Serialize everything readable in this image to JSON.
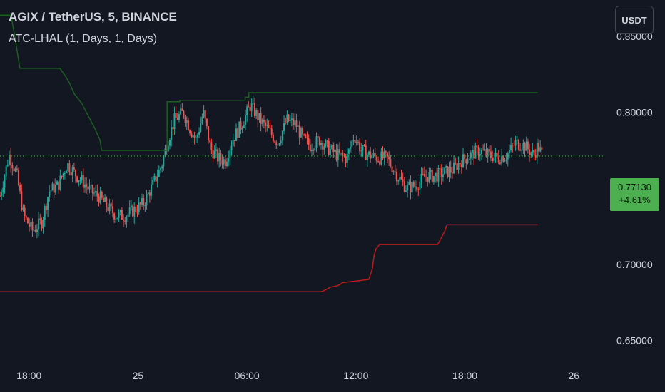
{
  "header": {
    "title": "AGIX / TetherUS, 5, BINANCE",
    "indicator": "ATC-LHAL (1, Days, 1, Days)"
  },
  "currency_button": "USDT",
  "price_tag": {
    "price": "0.77130",
    "change": "+4.61%"
  },
  "colors": {
    "background": "#131722",
    "up": "#26a69a",
    "down": "#ef5350",
    "high_line": "#1b5e20",
    "low_line": "#b71c1c",
    "axis_text": "#d1d4dc",
    "price_tag": "#4caf50"
  },
  "chart_data": {
    "type": "candlestick",
    "ylim": [
      0.63,
      0.874
    ],
    "x_ticks": [
      {
        "label": "18:00",
        "t": 4
      },
      {
        "label": "25",
        "t": 10
      },
      {
        "label": "06:00",
        "t": 16
      },
      {
        "label": "12:00",
        "t": 22
      },
      {
        "label": "18:00",
        "t": 28
      },
      {
        "label": "26",
        "t": 34
      }
    ],
    "x_range": [
      2.4,
      35.6
    ],
    "y_ticks": [
      {
        "label": "0.85000",
        "value": 0.85
      },
      {
        "label": "0.80000",
        "value": 0.8
      },
      {
        "label": "0.75000",
        "value": 0.75
      },
      {
        "label": "0.70000",
        "value": 0.7
      },
      {
        "label": "0.65000",
        "value": 0.65
      }
    ],
    "last_price": 0.7713,
    "close_path": [
      [
        2.4,
        0.745
      ],
      [
        2.9,
        0.772
      ],
      [
        3.3,
        0.76
      ],
      [
        3.7,
        0.732
      ],
      [
        4.2,
        0.722
      ],
      [
        4.7,
        0.728
      ],
      [
        5.1,
        0.748
      ],
      [
        5.6,
        0.752
      ],
      [
        6.1,
        0.766
      ],
      [
        6.5,
        0.76
      ],
      [
        6.9,
        0.755
      ],
      [
        7.4,
        0.748
      ],
      [
        7.8,
        0.745
      ],
      [
        8.3,
        0.738
      ],
      [
        8.8,
        0.732
      ],
      [
        9.3,
        0.732
      ],
      [
        9.8,
        0.736
      ],
      [
        10.3,
        0.74
      ],
      [
        10.8,
        0.752
      ],
      [
        11.3,
        0.765
      ],
      [
        11.6,
        0.78
      ],
      [
        12.0,
        0.795
      ],
      [
        12.5,
        0.8
      ],
      [
        12.9,
        0.788
      ],
      [
        13.2,
        0.782
      ],
      [
        13.6,
        0.8
      ],
      [
        14.0,
        0.776
      ],
      [
        14.4,
        0.77
      ],
      [
        14.8,
        0.768
      ],
      [
        15.2,
        0.782
      ],
      [
        15.7,
        0.792
      ],
      [
        16.2,
        0.805
      ],
      [
        16.7,
        0.795
      ],
      [
        17.2,
        0.788
      ],
      [
        17.7,
        0.78
      ],
      [
        18.2,
        0.795
      ],
      [
        18.7,
        0.792
      ],
      [
        19.1,
        0.782
      ],
      [
        19.5,
        0.778
      ],
      [
        20.0,
        0.782
      ],
      [
        20.5,
        0.776
      ],
      [
        21.0,
        0.772
      ],
      [
        21.5,
        0.77
      ],
      [
        21.9,
        0.785
      ],
      [
        22.3,
        0.775
      ],
      [
        22.7,
        0.772
      ],
      [
        23.2,
        0.77
      ],
      [
        23.7,
        0.77
      ],
      [
        24.3,
        0.758
      ],
      [
        24.8,
        0.75
      ],
      [
        25.3,
        0.752
      ],
      [
        25.8,
        0.758
      ],
      [
        26.3,
        0.758
      ],
      [
        26.8,
        0.76
      ],
      [
        27.3,
        0.762
      ],
      [
        27.8,
        0.768
      ],
      [
        28.3,
        0.772
      ],
      [
        28.8,
        0.775
      ],
      [
        29.3,
        0.772
      ],
      [
        29.8,
        0.77
      ],
      [
        30.3,
        0.772
      ],
      [
        30.8,
        0.78
      ],
      [
        31.3,
        0.778
      ],
      [
        31.8,
        0.772
      ],
      [
        32.0,
        0.778
      ],
      [
        32.3,
        0.7713
      ]
    ],
    "series": [
      {
        "name": "High",
        "steps": [
          [
            2.4,
            0.864
          ],
          [
            3.0,
            0.864
          ],
          [
            3.2,
            0.851
          ],
          [
            3.4,
            0.836
          ],
          [
            3.5,
            0.829
          ],
          [
            5.7,
            0.829
          ],
          [
            6.0,
            0.824
          ],
          [
            6.2,
            0.82
          ],
          [
            6.5,
            0.812
          ],
          [
            6.9,
            0.806
          ],
          [
            7.2,
            0.799
          ],
          [
            7.6,
            0.79
          ],
          [
            7.9,
            0.782
          ],
          [
            8.0,
            0.775
          ],
          [
            11.6,
            0.775
          ],
          [
            11.6,
            0.807
          ],
          [
            12.3,
            0.807
          ],
          [
            12.3,
            0.808
          ],
          [
            15.9,
            0.808
          ],
          [
            15.9,
            0.81
          ],
          [
            16.1,
            0.81
          ],
          [
            16.1,
            0.813
          ],
          [
            32.0,
            0.813
          ]
        ]
      },
      {
        "name": "Low",
        "steps": [
          [
            2.4,
            0.682
          ],
          [
            20.1,
            0.682
          ],
          [
            20.3,
            0.683
          ],
          [
            20.6,
            0.685
          ],
          [
            21.0,
            0.686
          ],
          [
            21.3,
            0.688
          ],
          [
            22.0,
            0.689
          ],
          [
            22.7,
            0.69
          ],
          [
            22.9,
            0.697
          ],
          [
            23.0,
            0.706
          ],
          [
            23.1,
            0.71
          ],
          [
            23.3,
            0.713
          ],
          [
            26.5,
            0.713
          ],
          [
            26.9,
            0.722
          ],
          [
            27.0,
            0.726
          ],
          [
            32.0,
            0.726
          ]
        ]
      }
    ]
  }
}
